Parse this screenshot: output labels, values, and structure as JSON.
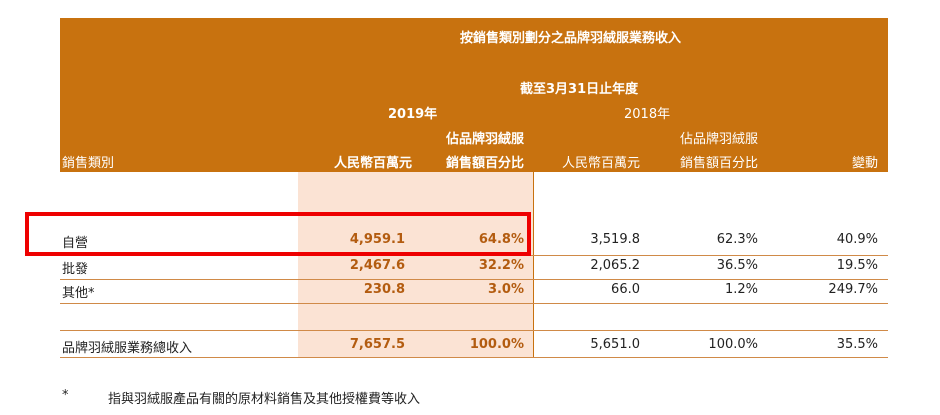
{
  "header": {
    "title": "按銷售類別劃分之品牌羽絨服業務收入",
    "period": "截至3月31日止年度",
    "year_2019": "2019年",
    "year_2018": "2018年",
    "col_category": "銷售類別",
    "col_rmb_2019": "人民幣百萬元",
    "col_pct_2019_line1": "佔品牌羽絨服",
    "col_pct_2019_line2": "銷售額百分比",
    "col_rmb_2018": "人民幣百萬元",
    "col_pct_2018_line1": "佔品牌羽絨服",
    "col_pct_2018_line2": "銷售額百分比",
    "col_change": "變動"
  },
  "rows": [
    {
      "category": "自營",
      "rmb_2019": "4,959.1",
      "pct_2019": "64.8%",
      "rmb_2018": "3,519.8",
      "pct_2018": "62.3%",
      "change": "40.9%"
    },
    {
      "category": "批發",
      "rmb_2019": "2,467.6",
      "pct_2019": "32.2%",
      "rmb_2018": "2,065.2",
      "pct_2018": "36.5%",
      "change": "19.5%"
    },
    {
      "category": "其他*",
      "rmb_2019": "230.8",
      "pct_2019": "3.0%",
      "rmb_2018": "66.0",
      "pct_2018": "1.2%",
      "change": "249.7%"
    }
  ],
  "total": {
    "category": "品牌羽絨服業務總收入",
    "rmb_2019": "7,657.5",
    "pct_2019": "100.0%",
    "rmb_2018": "5,651.0",
    "pct_2018": "100.0%",
    "change": "35.5%"
  },
  "footnote": {
    "marker": "*",
    "text": "指與羽絨服產品有關的原材料銷售及其他授權費等收入"
  },
  "colors": {
    "header_bg": "#c8720f",
    "highlight_col": "#fbe3d4",
    "highlight_box": "#ee0000"
  }
}
